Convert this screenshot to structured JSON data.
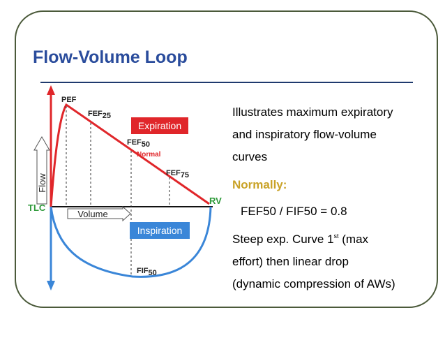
{
  "title": "Flow-Volume Loop",
  "diagram": {
    "pef": "PEF",
    "fef25": {
      "base": "FEF",
      "sub": "25"
    },
    "fef50": {
      "base": "FEF",
      "sub": "50"
    },
    "fef75": {
      "base": "FEF",
      "sub": "75"
    },
    "fif50": {
      "base": "FIF",
      "sub": "50"
    },
    "expiration": "Expiration",
    "normal": "Normal",
    "inspiration": "Inspiration",
    "flow": "Flow",
    "volume": "Volume",
    "tlc": "TLC",
    "rv": "RV"
  },
  "body": {
    "lines": [
      "Illustrates maximum expiratory",
      "and inspiratory flow-volume",
      "curves"
    ],
    "normally": "Normally:",
    "ratio": "FEF50 / FIF50 = 0.8",
    "steep": {
      "before": "Steep exp. Curve 1",
      "sup": "st",
      "after": " (max"
    },
    "rest": [
      "effort) then linear drop",
      "(dynamic compression of AWs)"
    ]
  }
}
